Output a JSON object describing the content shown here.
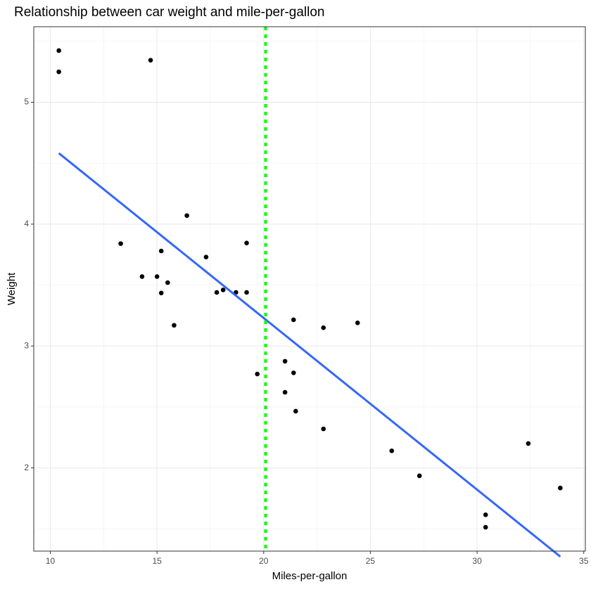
{
  "chart_data": {
    "type": "scatter",
    "title": "Relationship between car weight and mile-per-gallon",
    "xlabel": "Miles-per-gallon",
    "ylabel": "Weight",
    "x": [
      21.0,
      21.0,
      22.8,
      21.4,
      18.7,
      18.1,
      14.3,
      24.4,
      22.8,
      19.2,
      17.8,
      16.4,
      17.3,
      15.2,
      10.4,
      10.4,
      14.7,
      32.4,
      30.4,
      33.9,
      21.5,
      15.5,
      15.2,
      13.3,
      19.2,
      27.3,
      26.0,
      30.4,
      15.8,
      19.7,
      15.0,
      21.4
    ],
    "values": [
      2.62,
      2.875,
      2.32,
      3.215,
      3.44,
      3.46,
      3.57,
      3.19,
      3.15,
      3.44,
      3.44,
      4.07,
      3.73,
      3.78,
      5.25,
      5.424,
      5.345,
      2.2,
      1.615,
      1.835,
      2.465,
      3.52,
      3.435,
      3.84,
      3.845,
      1.935,
      2.14,
      1.513,
      3.17,
      2.77,
      3.57,
      2.78
    ],
    "color": "#000000",
    "fit_line": {
      "x": [
        10.4,
        33.9
      ],
      "values": [
        4.582,
        1.272
      ],
      "color": "#3366ff"
    },
    "vline": {
      "x": 20.09,
      "color": "#00ff00"
    },
    "xlim": [
      9.225,
      35.075
    ],
    "ylim": [
      1.317,
      5.62
    ],
    "xticks": [
      10,
      15,
      20,
      25,
      30,
      35
    ],
    "yticks": [
      2,
      3,
      4,
      5
    ],
    "minor_xticks": [
      12.5,
      17.5,
      22.5,
      27.5,
      32.5
    ],
    "minor_yticks": [
      1.5,
      2.5,
      3.5,
      4.5,
      5.5
    ],
    "grid": true
  }
}
